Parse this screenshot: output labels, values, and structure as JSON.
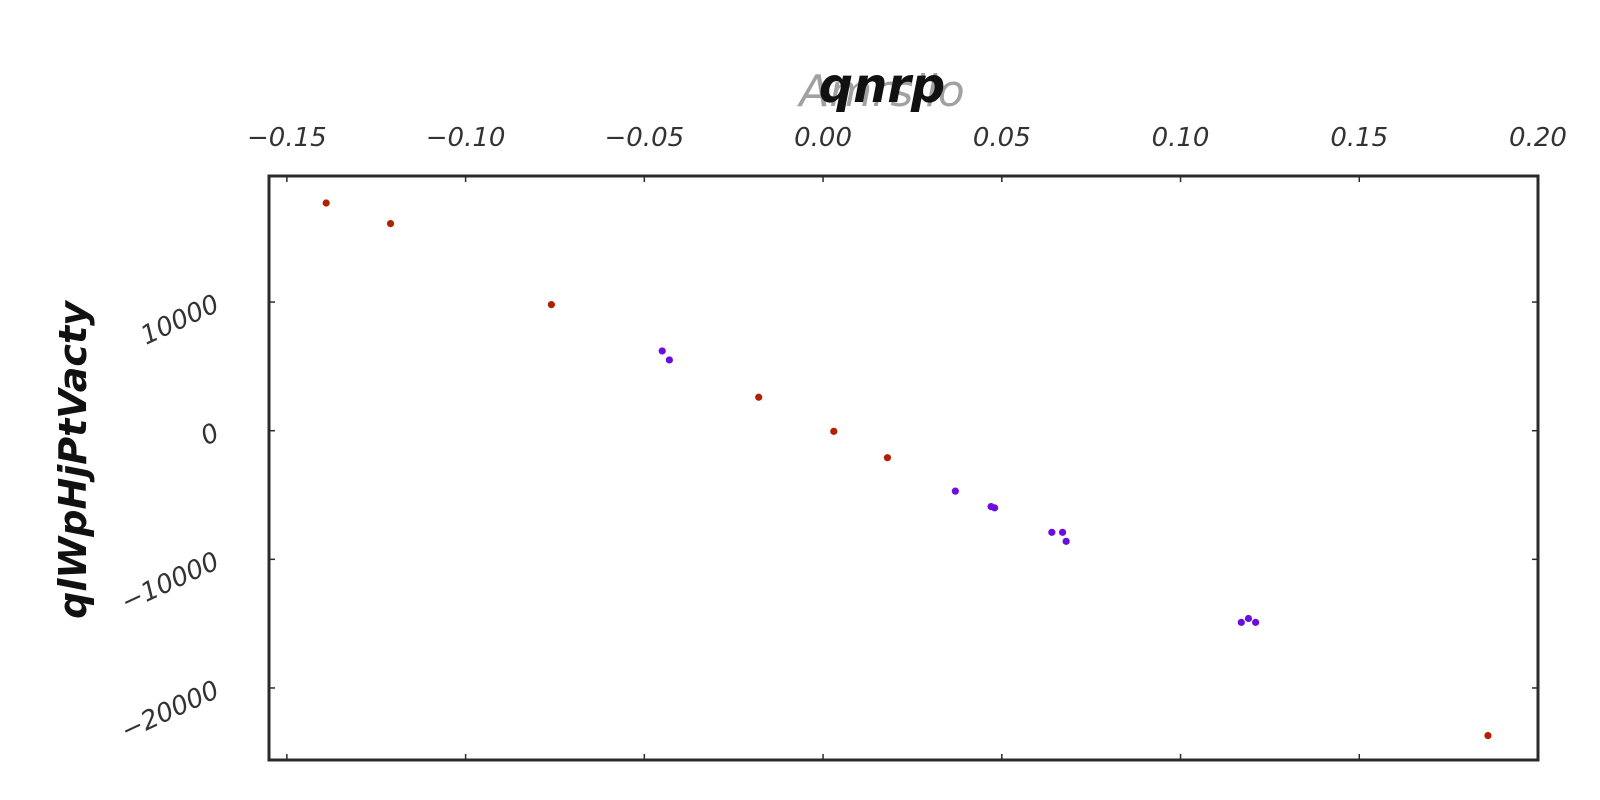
{
  "chart_data": {
    "type": "scatter",
    "title": "qnrp",
    "title_overlay": "Amrsllo",
    "xlabel": "",
    "ylabel": "qlWpHjPtVacty",
    "xlim": [
      -0.155,
      0.2
    ],
    "ylim": [
      -25600,
      19800
    ],
    "x_axis_position": "top",
    "x_ticks": [
      -0.15,
      -0.1,
      -0.05,
      0.0,
      0.05,
      0.1,
      0.15,
      0.2
    ],
    "x_tick_labels": [
      "−0.15",
      "−0.10",
      "−0.05",
      "0.00",
      "0.05",
      "0.10",
      "0.15",
      "0.20"
    ],
    "y_ticks": [
      -20000,
      -10000,
      0,
      10000
    ],
    "y_tick_labels": [
      "−20000",
      "−10000",
      "0",
      "10000"
    ],
    "grid": false,
    "series": [
      {
        "color": "#b22000",
        "points": [
          {
            "x": -0.139,
            "y": 17700
          },
          {
            "x": -0.121,
            "y": 16100
          },
          {
            "x": -0.076,
            "y": 9800
          },
          {
            "x": -0.018,
            "y": 2600
          },
          {
            "x": 0.003,
            "y": -50
          },
          {
            "x": 0.018,
            "y": -2100
          },
          {
            "x": 0.186,
            "y": -23700
          }
        ]
      },
      {
        "color": "#6a0ee0",
        "points": [
          {
            "x": -0.045,
            "y": 6200
          },
          {
            "x": -0.043,
            "y": 5500
          },
          {
            "x": 0.037,
            "y": -4700
          },
          {
            "x": 0.047,
            "y": -5900
          },
          {
            "x": 0.048,
            "y": -6000
          },
          {
            "x": 0.064,
            "y": -7900
          },
          {
            "x": 0.067,
            "y": -7900
          },
          {
            "x": 0.068,
            "y": -8600
          },
          {
            "x": 0.117,
            "y": -14900
          },
          {
            "x": 0.119,
            "y": -14600
          },
          {
            "x": 0.121,
            "y": -14900
          }
        ]
      }
    ]
  }
}
